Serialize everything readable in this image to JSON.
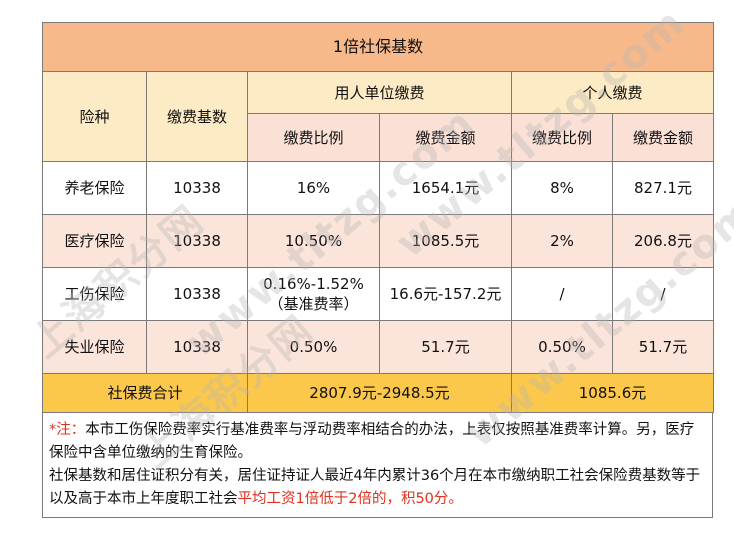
{
  "title": "1倍社保基数",
  "header": {
    "insurance_type": "险种",
    "base": "缴费基数",
    "employer": "用人单位缴费",
    "personal": "个人缴费",
    "rate": "缴费比例",
    "amount": "缴费金额"
  },
  "rows": [
    {
      "name": "养老保险",
      "base": "10338",
      "emp_rate": "16%",
      "emp_amount": "1654.1元",
      "per_rate": "8%",
      "per_amount": "827.1元"
    },
    {
      "name": "医疗保险",
      "base": "10338",
      "emp_rate": "10.50%",
      "emp_amount": "1085.5元",
      "per_rate": "2%",
      "per_amount": "206.8元"
    },
    {
      "name": "工伤保险",
      "base": "10338",
      "emp_rate": "0.16%-1.52%",
      "emp_rate_note": "（基准费率）",
      "emp_amount": "16.6元-157.2元",
      "per_rate": "/",
      "per_amount": "/"
    },
    {
      "name": "失业保险",
      "base": "10338",
      "emp_rate": "0.50%",
      "emp_amount": "51.7元",
      "per_rate": "0.50%",
      "per_amount": "51.7元"
    }
  ],
  "total": {
    "label": "社保费合计",
    "employer": "2807.9元-2948.5元",
    "personal": "1085.6元"
  },
  "note": {
    "star": "*注：",
    "line1": "本市工伤保险费率实行基准费率与浮动费率相结合的办法，上表仅按照基准费率计算。另，医疗保险中含单位缴纳的生育保险。",
    "line2_plain": "社保基数和居住证积分有关，居住证持证人最近4年内累计36个月在本市缴纳职工社会保险费基数等于以及高于本市上年度职工社会",
    "line2_red": "平均工资1倍低于2倍的，积50分。"
  },
  "watermark": [
    "上海积分网",
    "www.tltzg.com"
  ]
}
